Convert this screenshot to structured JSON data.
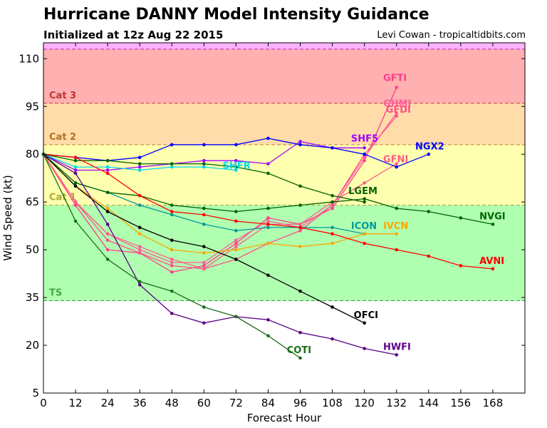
{
  "header": {
    "title": "Hurricane DANNY Model Intensity Guidance",
    "subtitle": "Initialized at 12z Aug 22 2015",
    "credit": "Levi Cowan - tropicaltidbits.com"
  },
  "chart_data": {
    "type": "line",
    "xlabel": "Forecast Hour",
    "ylabel": "Wind Speed (kt)",
    "xlim": [
      0,
      180
    ],
    "ylim": [
      5,
      115
    ],
    "xticks": [
      0,
      12,
      24,
      36,
      48,
      60,
      72,
      84,
      96,
      108,
      120,
      132,
      144,
      156,
      168
    ],
    "yticks": [
      5,
      20,
      35,
      50,
      65,
      80,
      95,
      110
    ],
    "grid": false,
    "categories": [
      {
        "name": "TS",
        "from": 34,
        "to": 64,
        "color": "#b0ffb0",
        "line": "#3a9a3a",
        "label_color": "#44aa44"
      },
      {
        "name": "Cat 1",
        "from": 64,
        "to": 83,
        "color": "#ffffb0",
        "line": "#a0a040",
        "label_color": "#aaaa33"
      },
      {
        "name": "Cat 2",
        "from": 83,
        "to": 96,
        "color": "#ffdcaa",
        "line": "#c08040",
        "label_color": "#b07020"
      },
      {
        "name": "Cat 3",
        "from": 96,
        "to": 113,
        "color": "#ffb0b0",
        "line": "#c04040",
        "label_color": "#bb3333"
      },
      {
        "name": "",
        "from": 113,
        "to": 115,
        "color": "#ffb0ff",
        "line": "#c040c0",
        "label_color": "#aa33aa"
      }
    ],
    "series": [
      {
        "name": "GFTI",
        "color": "#ff3c8c",
        "x": [
          0,
          12,
          24,
          36,
          48,
          60,
          72,
          84,
          96,
          108,
          120,
          132
        ],
        "values": [
          80,
          64,
          50,
          49,
          43,
          45,
          52,
          60,
          58,
          63,
          78,
          101
        ]
      },
      {
        "name": "GHMI",
        "color": "#ff5c9c",
        "x": [
          0,
          12,
          24,
          36,
          48,
          60,
          72,
          84,
          96,
          108,
          120,
          132
        ],
        "values": [
          80,
          65,
          55,
          50,
          46,
          46,
          53,
          59,
          57,
          64,
          79,
          93
        ]
      },
      {
        "name": "GFDI",
        "color": "#ff4c8c",
        "x": [
          0,
          12,
          24,
          36,
          48,
          60,
          72,
          84,
          96,
          108,
          120,
          132
        ],
        "values": [
          80,
          65,
          53,
          49,
          45,
          44,
          47,
          52,
          56,
          64,
          80,
          92
        ]
      },
      {
        "name": "GFNI",
        "color": "#ff5c8c",
        "x": [
          0,
          12,
          24,
          36,
          48,
          60,
          72,
          84,
          96,
          108,
          120,
          132
        ],
        "values": [
          80,
          65,
          55,
          51,
          47,
          44,
          51,
          58,
          58,
          65,
          71,
          77
        ]
      },
      {
        "name": "SHF5",
        "color": "#a000ff",
        "x": [
          0,
          12,
          24,
          36,
          48,
          60,
          72,
          84,
          96,
          108,
          120
        ],
        "values": [
          80,
          75,
          75,
          76,
          77,
          78,
          78,
          77,
          84,
          82,
          82
        ]
      },
      {
        "name": "NGX2",
        "color": "#0000ff",
        "x": [
          0,
          12,
          24,
          36,
          48,
          60,
          72,
          84,
          96,
          108,
          120,
          132,
          144
        ],
        "values": [
          80,
          79,
          78,
          79,
          83,
          83,
          83,
          85,
          83,
          82,
          80,
          76,
          80
        ]
      },
      {
        "name": "SHFR",
        "color": "#00d8e8",
        "x": [
          0,
          12,
          24,
          36,
          48,
          60,
          72
        ],
        "values": [
          80,
          76,
          76,
          75,
          76,
          76,
          75
        ]
      },
      {
        "name": "LGEM",
        "color": "#006400",
        "x": [
          0,
          12,
          24,
          36,
          48,
          60,
          72,
          84,
          96,
          108,
          120
        ],
        "values": [
          80,
          78,
          78,
          77,
          77,
          77,
          76,
          74,
          70,
          67,
          65
        ]
      },
      {
        "name": "ICON",
        "color": "#009a9a",
        "x": [
          0,
          12,
          24,
          36,
          48,
          60,
          72,
          84,
          96,
          108,
          120
        ],
        "values": [
          80,
          71,
          68,
          64,
          61,
          58,
          56,
          57,
          57,
          57,
          55
        ]
      },
      {
        "name": "IVCN",
        "color": "#ffa500",
        "x": [
          0,
          12,
          24,
          36,
          48,
          60,
          72,
          84,
          96,
          108,
          120,
          132
        ],
        "values": [
          80,
          70,
          63,
          55,
          50,
          49,
          50,
          52,
          51,
          52,
          55,
          55
        ]
      },
      {
        "name": "NVGI",
        "color": "#006400",
        "x": [
          0,
          12,
          24,
          36,
          48,
          60,
          72,
          84,
          96,
          108,
          120,
          132,
          144,
          156,
          168
        ],
        "values": [
          80,
          71,
          68,
          67,
          64,
          63,
          62,
          63,
          64,
          65,
          66,
          63,
          62,
          60,
          58
        ]
      },
      {
        "name": "AVNI",
        "color": "#ff0000",
        "x": [
          0,
          12,
          24,
          36,
          48,
          60,
          72,
          84,
          96,
          108,
          120,
          132,
          144,
          156,
          168
        ],
        "values": [
          80,
          79,
          74,
          67,
          62,
          61,
          59,
          58,
          57,
          55,
          52,
          50,
          48,
          45,
          44
        ]
      },
      {
        "name": "OFCI",
        "color": "#000000",
        "x": [
          0,
          12,
          24,
          36,
          48,
          60,
          72,
          84,
          96,
          108,
          120
        ],
        "values": [
          80,
          70,
          62,
          57,
          53,
          51,
          47,
          42,
          37,
          32,
          27
        ]
      },
      {
        "name": "HWFI",
        "color": "#5c0088",
        "x": [
          0,
          12,
          24,
          36,
          48,
          60,
          72,
          84,
          96,
          108,
          120,
          132
        ],
        "values": [
          80,
          74,
          58,
          39,
          30,
          27,
          29,
          28,
          24,
          22,
          19,
          17
        ]
      },
      {
        "name": "COTI",
        "color": "#1a6e1a",
        "x": [
          0,
          12,
          24,
          36,
          48,
          60,
          72,
          84,
          96
        ],
        "values": [
          80,
          59,
          47,
          40,
          37,
          32,
          29,
          23,
          16
        ]
      }
    ],
    "labels": [
      {
        "text": "GFTI",
        "x": 127,
        "y": 103,
        "color": "#ff3c8c"
      },
      {
        "text": "GHMI",
        "x": 127,
        "y": 95,
        "color": "#ff5c9c"
      },
      {
        "text": "GFDI",
        "x": 128,
        "y": 93,
        "color": "#ff4c8c"
      },
      {
        "text": "SHF5",
        "x": 115,
        "y": 84,
        "color": "#a000ff"
      },
      {
        "text": "NGX2",
        "x": 139,
        "y": 81.5,
        "color": "#0000ff"
      },
      {
        "text": "GFNI",
        "x": 127,
        "y": 77.5,
        "color": "#ff5c8c"
      },
      {
        "text": "SHFR",
        "x": 67,
        "y": 75.5,
        "color": "#00d8e8"
      },
      {
        "text": "LGEM",
        "x": 114,
        "y": 67.5,
        "color": "#006400"
      },
      {
        "text": "NVGI",
        "x": 163,
        "y": 59.5,
        "color": "#006400"
      },
      {
        "text": "ICON",
        "x": 115,
        "y": 56.5,
        "color": "#009a9a"
      },
      {
        "text": "IVCN",
        "x": 127,
        "y": 56.5,
        "color": "#ffa500"
      },
      {
        "text": "AVNI",
        "x": 163,
        "y": 45.5,
        "color": "#ff0000"
      },
      {
        "text": "OFCI",
        "x": 116,
        "y": 28.5,
        "color": "#000000"
      },
      {
        "text": "HWFI",
        "x": 127,
        "y": 18.5,
        "color": "#5c0088"
      },
      {
        "text": "COTI",
        "x": 91,
        "y": 17.5,
        "color": "#1a6e1a"
      }
    ]
  }
}
